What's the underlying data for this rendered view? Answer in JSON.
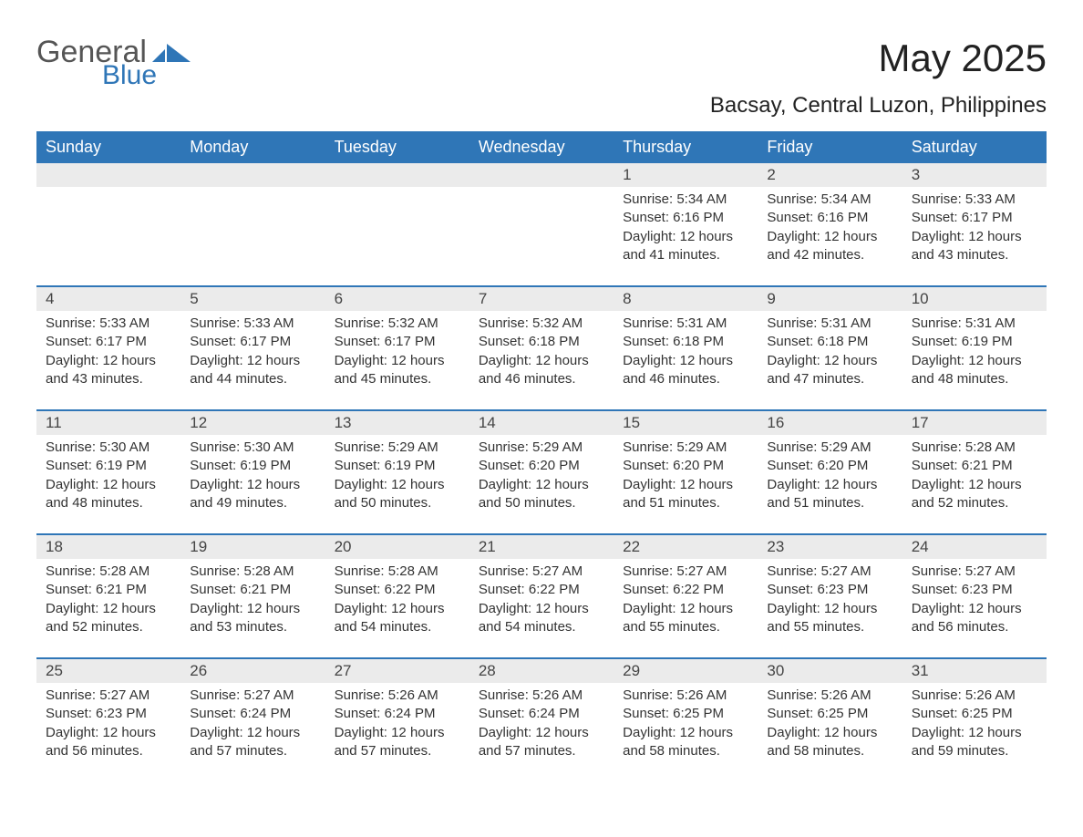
{
  "logo": {
    "text1": "General",
    "text2": "Blue",
    "shape_color": "#2f76b7",
    "text1_color": "#555555",
    "text2_color": "#2f76b7"
  },
  "title": "May 2025",
  "subtitle": "Bacsay, Central Luzon, Philippines",
  "colors": {
    "header_bg": "#2f76b7",
    "header_text": "#ffffff",
    "daynum_bg": "#ebebeb",
    "row_divider": "#2f76b7",
    "body_text": "#333333",
    "background": "#ffffff"
  },
  "fontsizes": {
    "title": 42,
    "subtitle": 24,
    "weekday": 18,
    "daynum": 17,
    "body": 15
  },
  "weekdays": [
    "Sunday",
    "Monday",
    "Tuesday",
    "Wednesday",
    "Thursday",
    "Friday",
    "Saturday"
  ],
  "weeks": [
    [
      {
        "day": "",
        "sunrise": "",
        "sunset": "",
        "daylight": ""
      },
      {
        "day": "",
        "sunrise": "",
        "sunset": "",
        "daylight": ""
      },
      {
        "day": "",
        "sunrise": "",
        "sunset": "",
        "daylight": ""
      },
      {
        "day": "",
        "sunrise": "",
        "sunset": "",
        "daylight": ""
      },
      {
        "day": "1",
        "sunrise": "Sunrise: 5:34 AM",
        "sunset": "Sunset: 6:16 PM",
        "daylight": "Daylight: 12 hours and 41 minutes."
      },
      {
        "day": "2",
        "sunrise": "Sunrise: 5:34 AM",
        "sunset": "Sunset: 6:16 PM",
        "daylight": "Daylight: 12 hours and 42 minutes."
      },
      {
        "day": "3",
        "sunrise": "Sunrise: 5:33 AM",
        "sunset": "Sunset: 6:17 PM",
        "daylight": "Daylight: 12 hours and 43 minutes."
      }
    ],
    [
      {
        "day": "4",
        "sunrise": "Sunrise: 5:33 AM",
        "sunset": "Sunset: 6:17 PM",
        "daylight": "Daylight: 12 hours and 43 minutes."
      },
      {
        "day": "5",
        "sunrise": "Sunrise: 5:33 AM",
        "sunset": "Sunset: 6:17 PM",
        "daylight": "Daylight: 12 hours and 44 minutes."
      },
      {
        "day": "6",
        "sunrise": "Sunrise: 5:32 AM",
        "sunset": "Sunset: 6:17 PM",
        "daylight": "Daylight: 12 hours and 45 minutes."
      },
      {
        "day": "7",
        "sunrise": "Sunrise: 5:32 AM",
        "sunset": "Sunset: 6:18 PM",
        "daylight": "Daylight: 12 hours and 46 minutes."
      },
      {
        "day": "8",
        "sunrise": "Sunrise: 5:31 AM",
        "sunset": "Sunset: 6:18 PM",
        "daylight": "Daylight: 12 hours and 46 minutes."
      },
      {
        "day": "9",
        "sunrise": "Sunrise: 5:31 AM",
        "sunset": "Sunset: 6:18 PM",
        "daylight": "Daylight: 12 hours and 47 minutes."
      },
      {
        "day": "10",
        "sunrise": "Sunrise: 5:31 AM",
        "sunset": "Sunset: 6:19 PM",
        "daylight": "Daylight: 12 hours and 48 minutes."
      }
    ],
    [
      {
        "day": "11",
        "sunrise": "Sunrise: 5:30 AM",
        "sunset": "Sunset: 6:19 PM",
        "daylight": "Daylight: 12 hours and 48 minutes."
      },
      {
        "day": "12",
        "sunrise": "Sunrise: 5:30 AM",
        "sunset": "Sunset: 6:19 PM",
        "daylight": "Daylight: 12 hours and 49 minutes."
      },
      {
        "day": "13",
        "sunrise": "Sunrise: 5:29 AM",
        "sunset": "Sunset: 6:19 PM",
        "daylight": "Daylight: 12 hours and 50 minutes."
      },
      {
        "day": "14",
        "sunrise": "Sunrise: 5:29 AM",
        "sunset": "Sunset: 6:20 PM",
        "daylight": "Daylight: 12 hours and 50 minutes."
      },
      {
        "day": "15",
        "sunrise": "Sunrise: 5:29 AM",
        "sunset": "Sunset: 6:20 PM",
        "daylight": "Daylight: 12 hours and 51 minutes."
      },
      {
        "day": "16",
        "sunrise": "Sunrise: 5:29 AM",
        "sunset": "Sunset: 6:20 PM",
        "daylight": "Daylight: 12 hours and 51 minutes."
      },
      {
        "day": "17",
        "sunrise": "Sunrise: 5:28 AM",
        "sunset": "Sunset: 6:21 PM",
        "daylight": "Daylight: 12 hours and 52 minutes."
      }
    ],
    [
      {
        "day": "18",
        "sunrise": "Sunrise: 5:28 AM",
        "sunset": "Sunset: 6:21 PM",
        "daylight": "Daylight: 12 hours and 52 minutes."
      },
      {
        "day": "19",
        "sunrise": "Sunrise: 5:28 AM",
        "sunset": "Sunset: 6:21 PM",
        "daylight": "Daylight: 12 hours and 53 minutes."
      },
      {
        "day": "20",
        "sunrise": "Sunrise: 5:28 AM",
        "sunset": "Sunset: 6:22 PM",
        "daylight": "Daylight: 12 hours and 54 minutes."
      },
      {
        "day": "21",
        "sunrise": "Sunrise: 5:27 AM",
        "sunset": "Sunset: 6:22 PM",
        "daylight": "Daylight: 12 hours and 54 minutes."
      },
      {
        "day": "22",
        "sunrise": "Sunrise: 5:27 AM",
        "sunset": "Sunset: 6:22 PM",
        "daylight": "Daylight: 12 hours and 55 minutes."
      },
      {
        "day": "23",
        "sunrise": "Sunrise: 5:27 AM",
        "sunset": "Sunset: 6:23 PM",
        "daylight": "Daylight: 12 hours and 55 minutes."
      },
      {
        "day": "24",
        "sunrise": "Sunrise: 5:27 AM",
        "sunset": "Sunset: 6:23 PM",
        "daylight": "Daylight: 12 hours and 56 minutes."
      }
    ],
    [
      {
        "day": "25",
        "sunrise": "Sunrise: 5:27 AM",
        "sunset": "Sunset: 6:23 PM",
        "daylight": "Daylight: 12 hours and 56 minutes."
      },
      {
        "day": "26",
        "sunrise": "Sunrise: 5:27 AM",
        "sunset": "Sunset: 6:24 PM",
        "daylight": "Daylight: 12 hours and 57 minutes."
      },
      {
        "day": "27",
        "sunrise": "Sunrise: 5:26 AM",
        "sunset": "Sunset: 6:24 PM",
        "daylight": "Daylight: 12 hours and 57 minutes."
      },
      {
        "day": "28",
        "sunrise": "Sunrise: 5:26 AM",
        "sunset": "Sunset: 6:24 PM",
        "daylight": "Daylight: 12 hours and 57 minutes."
      },
      {
        "day": "29",
        "sunrise": "Sunrise: 5:26 AM",
        "sunset": "Sunset: 6:25 PM",
        "daylight": "Daylight: 12 hours and 58 minutes."
      },
      {
        "day": "30",
        "sunrise": "Sunrise: 5:26 AM",
        "sunset": "Sunset: 6:25 PM",
        "daylight": "Daylight: 12 hours and 58 minutes."
      },
      {
        "day": "31",
        "sunrise": "Sunrise: 5:26 AM",
        "sunset": "Sunset: 6:25 PM",
        "daylight": "Daylight: 12 hours and 59 minutes."
      }
    ]
  ]
}
